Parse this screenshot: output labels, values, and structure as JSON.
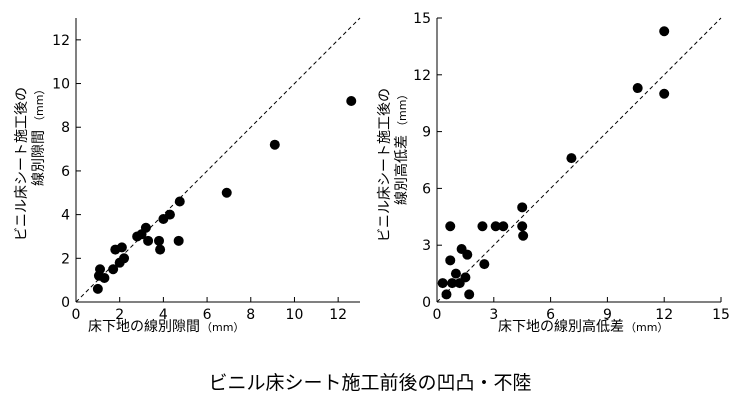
{
  "caption": "ビニル床シート施工前後の凹凸・不陸",
  "chart_data": [
    {
      "type": "scatter",
      "title": "",
      "xlabel": "床下地の線別隙間",
      "xlabel_unit": "（mm）",
      "ylabel_line1": "ビニル床シート施工後の",
      "ylabel_line2": "線別隙間",
      "ylabel_unit": "（mm）",
      "xlim": [
        0,
        13
      ],
      "ylim": [
        0,
        13
      ],
      "xticks": [
        0,
        2,
        4,
        6,
        8,
        10,
        12
      ],
      "yticks": [
        0,
        2,
        4,
        6,
        8,
        10,
        12
      ],
      "reference_line": "y = x",
      "series": [
        {
          "points": [
            [
              1.0,
              0.6
            ],
            [
              1.05,
              1.2
            ],
            [
              1.1,
              1.5
            ],
            [
              1.3,
              1.1
            ],
            [
              1.7,
              1.5
            ],
            [
              1.8,
              2.4
            ],
            [
              2.0,
              1.8
            ],
            [
              2.1,
              2.5
            ],
            [
              2.2,
              2.0
            ],
            [
              2.8,
              3.0
            ],
            [
              3.0,
              3.1
            ],
            [
              3.2,
              3.4
            ],
            [
              3.3,
              2.8
            ],
            [
              3.8,
              2.8
            ],
            [
              3.85,
              2.4
            ],
            [
              4.0,
              3.8
            ],
            [
              4.3,
              4.0
            ],
            [
              4.7,
              2.8
            ],
            [
              4.75,
              4.6
            ],
            [
              6.9,
              5.0
            ],
            [
              9.1,
              7.2
            ],
            [
              12.6,
              9.2
            ]
          ]
        }
      ]
    },
    {
      "type": "scatter",
      "title": "",
      "xlabel": "床下地の線別高低差",
      "xlabel_unit": "（mm）",
      "ylabel_line1": "ビニル床シート施工後の",
      "ylabel_line2": "線別高低差",
      "ylabel_unit": "（mm）",
      "xlim": [
        0,
        15
      ],
      "ylim": [
        0,
        15
      ],
      "xticks": [
        0,
        3,
        6,
        9,
        12,
        15
      ],
      "yticks": [
        0,
        3,
        6,
        9,
        12,
        15
      ],
      "reference_line": "y = x",
      "series": [
        {
          "points": [
            [
              0.3,
              1.0
            ],
            [
              0.5,
              0.4
            ],
            [
              0.7,
              4.0
            ],
            [
              0.7,
              2.2
            ],
            [
              0.8,
              1.0
            ],
            [
              1.0,
              1.5
            ],
            [
              1.2,
              1.0
            ],
            [
              1.3,
              2.8
            ],
            [
              1.5,
              1.3
            ],
            [
              1.6,
              2.5
            ],
            [
              1.7,
              0.4
            ],
            [
              2.4,
              4.0
            ],
            [
              2.5,
              2.0
            ],
            [
              3.1,
              4.0
            ],
            [
              3.5,
              4.0
            ],
            [
              4.5,
              4.0
            ],
            [
              4.5,
              5.0
            ],
            [
              4.55,
              3.5
            ],
            [
              7.1,
              7.6
            ],
            [
              10.6,
              11.3
            ],
            [
              12.0,
              11.0
            ],
            [
              12.0,
              14.3
            ]
          ]
        }
      ]
    }
  ]
}
